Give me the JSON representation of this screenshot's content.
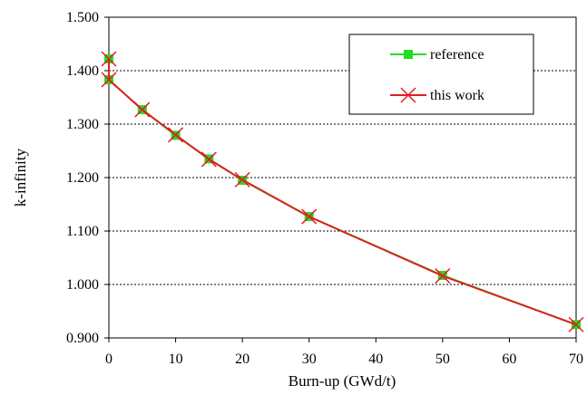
{
  "chart_data": {
    "type": "line",
    "xlabel": "Burn-up (GWd/t)",
    "ylabel": "k-infinity",
    "xlim": [
      0,
      70
    ],
    "ylim": [
      0.9,
      1.5
    ],
    "x_ticks": [
      "0",
      "10",
      "20",
      "30",
      "40",
      "50",
      "60",
      "70"
    ],
    "y_ticks": [
      "0.900",
      "1.000",
      "1.100",
      "1.200",
      "1.300",
      "1.400",
      "1.500"
    ],
    "grid": "horizontal-dotted",
    "legend_position": "top-right",
    "x": [
      0,
      0,
      5,
      10,
      15,
      20,
      30,
      50,
      70
    ],
    "series": [
      {
        "name": "reference",
        "color": "#22dd22",
        "marker": "square",
        "values": [
          1.422,
          1.383,
          1.327,
          1.279,
          1.235,
          1.195,
          1.127,
          1.017,
          0.925
        ]
      },
      {
        "name": "this work",
        "color": "#dd2222",
        "marker": "x",
        "values": [
          1.422,
          1.383,
          1.327,
          1.28,
          1.234,
          1.196,
          1.127,
          1.016,
          0.925
        ]
      }
    ]
  }
}
